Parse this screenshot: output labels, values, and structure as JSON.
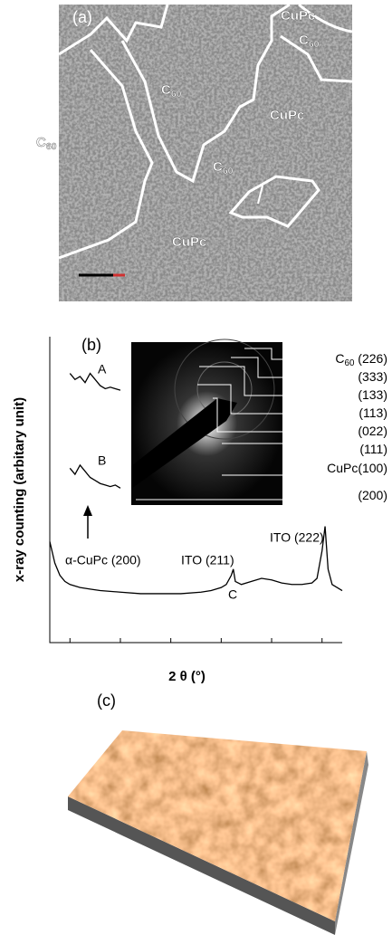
{
  "panel_a": {
    "label": "(a)",
    "regions": [
      {
        "text": "CuPc"
      },
      {
        "text": "C",
        "sub": "60"
      },
      {
        "text": "C",
        "sub": "60"
      },
      {
        "text": "CuPc"
      },
      {
        "text": "C",
        "sub": "60"
      },
      {
        "text": "C",
        "sub": "60"
      },
      {
        "text": "CuPc"
      }
    ]
  },
  "chart_data": {
    "type": "line",
    "label": "(b)",
    "x_label": "2 θ (°)",
    "y_label": "x-ray counting (arbitary unit)",
    "xlim": [
      3,
      32
    ],
    "xticks": [
      5,
      10,
      15,
      20,
      25,
      30
    ],
    "ylim": [
      0,
      100
    ],
    "color": "#000000",
    "series": [
      {
        "x": [
          3,
          3.5,
          4,
          4.5,
          5,
          6,
          7,
          8,
          10,
          12,
          14,
          16,
          18,
          19,
          20,
          20.5,
          21,
          21.2,
          21.4,
          22,
          23,
          24,
          25,
          26,
          27,
          28,
          29,
          29.5,
          30,
          30.3,
          30.6,
          31,
          31.5,
          32
        ],
        "values": [
          33,
          26,
          22,
          20,
          19,
          18,
          17.5,
          17,
          16.5,
          16,
          16,
          16,
          16.5,
          17,
          18,
          19,
          22,
          24,
          20,
          19,
          20,
          21,
          20.5,
          19.5,
          19,
          19,
          19.5,
          21,
          30,
          38,
          24,
          19,
          18,
          17
        ]
      },
      {
        "name": "A",
        "x": [
          5,
          5.5,
          6,
          6.5,
          7,
          7.5,
          8,
          8.5,
          9,
          9.5,
          10
        ],
        "values": [
          88,
          86,
          87,
          85,
          88,
          86,
          84,
          83,
          83.5,
          83,
          82.5
        ]
      },
      {
        "name": "B",
        "x": [
          5,
          5.5,
          6,
          6.5,
          7,
          7.5,
          8,
          8.5,
          9,
          9.5,
          10
        ],
        "values": [
          57,
          55,
          58,
          56,
          54,
          53,
          52,
          51.5,
          51,
          51.5,
          50.5
        ]
      }
    ],
    "annotations": [
      "α-CuPc (200)",
      "ITO (211)",
      "ITO (222)",
      "C"
    ],
    "diffraction_labels": [
      {
        "text": "C",
        "sub": "60",
        "tail": " (226)"
      },
      {
        "text": "(333)"
      },
      {
        "text": "(133)"
      },
      {
        "text": "(113)"
      },
      {
        "text": "(022)"
      },
      {
        "text": "(111)"
      },
      {
        "text": "CuPc(100)"
      },
      {
        "text": "(200)"
      }
    ]
  },
  "panel_c": {
    "label": "(c)"
  }
}
